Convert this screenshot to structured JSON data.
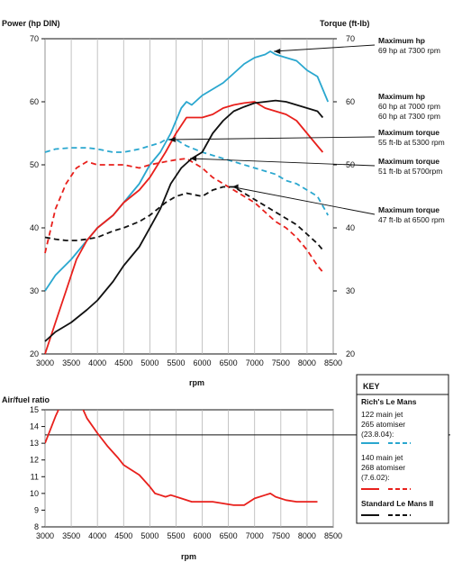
{
  "chart_data": [
    {
      "type": "line",
      "ylabel_left": "Power (hp DIN)",
      "ylabel_right": "Torque (ft-lb)",
      "xlabel": "rpm",
      "xlim": [
        3000,
        8500
      ],
      "ylim": [
        20,
        70
      ],
      "x_ticks": [
        "3000",
        "3500",
        "4000",
        "4500",
        "5000",
        "5500",
        "6000",
        "6500",
        "7000",
        "7500",
        "8000",
        "8500"
      ],
      "y_ticks_left": [
        "20",
        "30",
        "40",
        "50",
        "60",
        "70"
      ],
      "y_ticks_right": [
        "20",
        "30",
        "40",
        "50",
        "60",
        "70"
      ],
      "grid": true,
      "series": [
        {
          "color": "#2aa7cf",
          "dash": "solid",
          "points": [
            [
              3000,
              30
            ],
            [
              3200,
              32.5
            ],
            [
              3500,
              35
            ],
            [
              3800,
              38
            ],
            [
              4000,
              40
            ],
            [
              4300,
              42
            ],
            [
              4500,
              44
            ],
            [
              4800,
              47
            ],
            [
              5000,
              50
            ],
            [
              5200,
              52
            ],
            [
              5400,
              55
            ],
            [
              5600,
              59
            ],
            [
              5700,
              60
            ],
            [
              5800,
              59.5
            ],
            [
              6000,
              61
            ],
            [
              6200,
              62
            ],
            [
              6400,
              63
            ],
            [
              6600,
              64.5
            ],
            [
              6800,
              66
            ],
            [
              7000,
              67
            ],
            [
              7200,
              67.5
            ],
            [
              7300,
              68
            ],
            [
              7400,
              67.5
            ],
            [
              7600,
              67
            ],
            [
              7800,
              66.5
            ],
            [
              8000,
              65
            ],
            [
              8200,
              64
            ],
            [
              8400,
              60
            ]
          ]
        },
        {
          "color": "#2aa7cf",
          "dash": "dashed",
          "points": [
            [
              3000,
              52
            ],
            [
              3200,
              52.5
            ],
            [
              3500,
              52.7
            ],
            [
              3800,
              52.7
            ],
            [
              4000,
              52.5
            ],
            [
              4300,
              52
            ],
            [
              4500,
              52
            ],
            [
              4800,
              52.5
            ],
            [
              5000,
              53
            ],
            [
              5200,
              53.5
            ],
            [
              5300,
              54
            ],
            [
              5500,
              54
            ],
            [
              5700,
              53
            ],
            [
              6000,
              52
            ],
            [
              6200,
              51.5
            ],
            [
              6400,
              51
            ],
            [
              6600,
              50.5
            ],
            [
              6800,
              50
            ],
            [
              7000,
              49.5
            ],
            [
              7200,
              49
            ],
            [
              7400,
              48.5
            ],
            [
              7600,
              47.5
            ],
            [
              7800,
              47
            ],
            [
              8000,
              46
            ],
            [
              8200,
              45
            ],
            [
              8400,
              42
            ]
          ]
        },
        {
          "color": "#e8201c",
          "dash": "solid",
          "points": [
            [
              3000,
              20
            ],
            [
              3200,
              25
            ],
            [
              3400,
              30
            ],
            [
              3600,
              35
            ],
            [
              3800,
              38
            ],
            [
              4000,
              40
            ],
            [
              4300,
              42
            ],
            [
              4500,
              44
            ],
            [
              4800,
              46
            ],
            [
              5000,
              48
            ],
            [
              5300,
              52
            ],
            [
              5500,
              55
            ],
            [
              5700,
              57.5
            ],
            [
              5900,
              57.5
            ],
            [
              6000,
              57.5
            ],
            [
              6200,
              58
            ],
            [
              6400,
              59
            ],
            [
              6600,
              59.5
            ],
            [
              6800,
              59.8
            ],
            [
              7000,
              60
            ],
            [
              7200,
              59
            ],
            [
              7400,
              58.5
            ],
            [
              7600,
              58
            ],
            [
              7800,
              57
            ],
            [
              8000,
              55
            ],
            [
              8200,
              53
            ],
            [
              8300,
              52
            ]
          ]
        },
        {
          "color": "#e8201c",
          "dash": "dashed",
          "points": [
            [
              3000,
              36
            ],
            [
              3200,
              43
            ],
            [
              3400,
              47
            ],
            [
              3600,
              49.5
            ],
            [
              3800,
              50.5
            ],
            [
              4000,
              50
            ],
            [
              4300,
              50
            ],
            [
              4500,
              50
            ],
            [
              4800,
              49.5
            ],
            [
              5000,
              50
            ],
            [
              5300,
              50.5
            ],
            [
              5500,
              50.8
            ],
            [
              5700,
              51
            ],
            [
              5800,
              50.5
            ],
            [
              6000,
              49.5
            ],
            [
              6200,
              48
            ],
            [
              6400,
              47
            ],
            [
              6600,
              46
            ],
            [
              6800,
              45
            ],
            [
              7000,
              44
            ],
            [
              7200,
              42.5
            ],
            [
              7400,
              41
            ],
            [
              7600,
              40
            ],
            [
              7800,
              38.5
            ],
            [
              8000,
              36.5
            ],
            [
              8200,
              34
            ],
            [
              8300,
              33
            ]
          ]
        },
        {
          "color": "#111111",
          "dash": "solid",
          "points": [
            [
              3000,
              22
            ],
            [
              3200,
              23.5
            ],
            [
              3500,
              25
            ],
            [
              3800,
              27
            ],
            [
              4000,
              28.5
            ],
            [
              4300,
              31.5
            ],
            [
              4500,
              34
            ],
            [
              4800,
              37
            ],
            [
              5000,
              40
            ],
            [
              5200,
              43
            ],
            [
              5400,
              47
            ],
            [
              5600,
              49.5
            ],
            [
              5800,
              51
            ],
            [
              6000,
              52
            ],
            [
              6200,
              55
            ],
            [
              6400,
              57
            ],
            [
              6600,
              58.5
            ],
            [
              6800,
              59.2
            ],
            [
              7000,
              59.8
            ],
            [
              7200,
              60
            ],
            [
              7400,
              60.2
            ],
            [
              7600,
              60
            ],
            [
              7800,
              59.5
            ],
            [
              8000,
              59
            ],
            [
              8200,
              58.5
            ],
            [
              8300,
              57.5
            ]
          ]
        },
        {
          "color": "#111111",
          "dash": "dashed",
          "points": [
            [
              3000,
              38.5
            ],
            [
              3200,
              38.2
            ],
            [
              3400,
              38
            ],
            [
              3600,
              38
            ],
            [
              3800,
              38.2
            ],
            [
              4000,
              38.5
            ],
            [
              4300,
              39.5
            ],
            [
              4500,
              40
            ],
            [
              4800,
              41
            ],
            [
              5000,
              42
            ],
            [
              5300,
              44
            ],
            [
              5500,
              45
            ],
            [
              5700,
              45.5
            ],
            [
              6000,
              45
            ],
            [
              6200,
              46
            ],
            [
              6400,
              46.5
            ],
            [
              6600,
              46.5
            ],
            [
              6800,
              45.5
            ],
            [
              7000,
              44.5
            ],
            [
              7200,
              43.5
            ],
            [
              7400,
              42.5
            ],
            [
              7600,
              41.5
            ],
            [
              7800,
              40.5
            ],
            [
              8000,
              39
            ],
            [
              8200,
              37.5
            ],
            [
              8300,
              36.5
            ]
          ]
        }
      ]
    },
    {
      "type": "line",
      "ylabel": "Air/fuel ratio",
      "xlabel": "rpm",
      "xlim": [
        3000,
        8500
      ],
      "ylim": [
        8,
        15
      ],
      "x_ticks": [
        "3000",
        "3500",
        "4000",
        "4500",
        "5000",
        "5500",
        "6000",
        "6500",
        "7000",
        "7500",
        "8000",
        "8500"
      ],
      "y_ticks": [
        "8",
        "9",
        "10",
        "11",
        "12",
        "13",
        "14",
        "15"
      ],
      "reference_line": 13.5,
      "series": [
        {
          "color": "#e8201c",
          "dash": "solid",
          "points": [
            [
              3000,
              13
            ],
            [
              3100,
              13.8
            ],
            [
              3200,
              14.6
            ],
            [
              3300,
              15.3
            ],
            [
              3400,
              16
            ],
            [
              3600,
              16
            ],
            [
              3700,
              15.2
            ],
            [
              3800,
              14.5
            ],
            [
              4000,
              13.6
            ],
            [
              4200,
              12.8
            ],
            [
              4400,
              12.1
            ],
            [
              4500,
              11.7
            ],
            [
              4600,
              11.5
            ],
            [
              4800,
              11.1
            ],
            [
              5000,
              10.4
            ],
            [
              5100,
              10
            ],
            [
              5200,
              9.9
            ],
            [
              5300,
              9.8
            ],
            [
              5400,
              9.9
            ],
            [
              5600,
              9.7
            ],
            [
              5800,
              9.5
            ],
            [
              6000,
              9.5
            ],
            [
              6200,
              9.5
            ],
            [
              6400,
              9.4
            ],
            [
              6600,
              9.3
            ],
            [
              6800,
              9.3
            ],
            [
              7000,
              9.7
            ],
            [
              7200,
              9.9
            ],
            [
              7300,
              10
            ],
            [
              7400,
              9.8
            ],
            [
              7600,
              9.6
            ],
            [
              7800,
              9.5
            ],
            [
              8000,
              9.5
            ],
            [
              8200,
              9.5
            ]
          ]
        }
      ]
    }
  ],
  "annotations": [
    {
      "title": "Maximum hp",
      "lines": [
        "69 hp at 7300 rpm"
      ],
      "ax": 7300,
      "ay": 68
    },
    {
      "title": "Maximum hp",
      "lines": [
        "60 hp at 7000 rpm",
        "60 hp at 7300 rpm"
      ],
      "ax": null,
      "ay": null
    },
    {
      "title": "Maximum torque",
      "lines": [
        "55 ft-lb at 5300 rpm"
      ],
      "ax": 5300,
      "ay": 54
    },
    {
      "title": "Maximum torque",
      "lines": [
        "51 ft-lb at 5700rpm"
      ],
      "ax": 5700,
      "ay": 51
    },
    {
      "title": "Maximum torque",
      "lines": [
        "47 ft-lb  at 6500 rpm"
      ],
      "ax": 6500,
      "ay": 46.5
    }
  ],
  "key": {
    "title": "KEY",
    "groups": [
      {
        "title": "Rich's Le Mans",
        "lines": [
          "122 main jet",
          "265 atomiser",
          "(23.8.04):"
        ],
        "color": "#2aa7cf"
      },
      {
        "title": "",
        "lines": [
          "140 main jet",
          "268 atomiser",
          "(7.6.02):"
        ],
        "color": "#e8201c"
      },
      {
        "title": "Standard Le Mans II",
        "lines": [],
        "color": "#111111"
      }
    ]
  }
}
